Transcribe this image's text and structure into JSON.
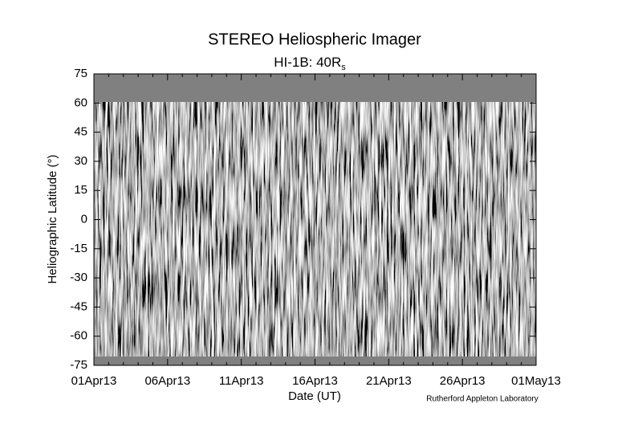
{
  "chart_data": {
    "type": "image",
    "title": "STEREO Heliospheric Imager",
    "subtitle": {
      "text": "HI-1B: 40R",
      "subscript": "s"
    },
    "x_label": "Date (UT)",
    "y_label": "Heliographic Latitude (°)",
    "credit": "Rutherford Appleton Laboratory",
    "xticks": [
      "01Apr13",
      "06Apr13",
      "11Apr13",
      "16Apr13",
      "21Apr13",
      "26Apr13",
      "01May13"
    ],
    "ylim": [
      -75,
      75
    ],
    "yticks": [
      -75,
      -60,
      -45,
      -30,
      -15,
      0,
      15,
      30,
      45,
      60,
      75
    ]
  }
}
